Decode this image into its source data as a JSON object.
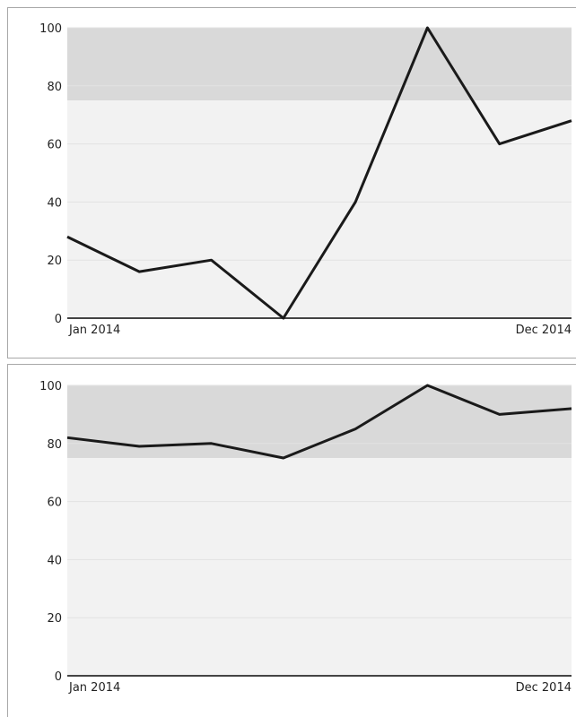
{
  "chart_data": [
    {
      "type": "line",
      "x": [
        1,
        2,
        3,
        4,
        5,
        6,
        7,
        8
      ],
      "values": [
        28,
        16,
        20,
        0,
        40,
        100,
        60,
        68
      ],
      "ylim": [
        0,
        100
      ],
      "yticks": [
        "0",
        "20",
        "40",
        "60",
        "80",
        "100"
      ],
      "x_tick_labels": {
        "first": "Jan 2014",
        "last": "Dec 2014"
      },
      "target_band": [
        75,
        100
      ],
      "grid": true,
      "colors": {
        "line": "#1a1a1a",
        "plot_bg": "#f2f2f2",
        "band": "#d9d9d9",
        "grid": "#e2e2e2",
        "axis": "#444444"
      }
    },
    {
      "type": "line",
      "x": [
        1,
        2,
        3,
        4,
        5,
        6,
        7,
        8
      ],
      "values": [
        82,
        79,
        80,
        75,
        85,
        100,
        90,
        92
      ],
      "ylim": [
        0,
        100
      ],
      "yticks": [
        "0",
        "20",
        "40",
        "60",
        "80",
        "100"
      ],
      "x_tick_labels": {
        "first": "Jan 2014",
        "last": "Dec 2014"
      },
      "target_band": [
        75,
        100
      ],
      "grid": true,
      "colors": {
        "line": "#1a1a1a",
        "plot_bg": "#f2f2f2",
        "band": "#d9d9d9",
        "grid": "#e2e2e2",
        "axis": "#444444"
      }
    }
  ]
}
